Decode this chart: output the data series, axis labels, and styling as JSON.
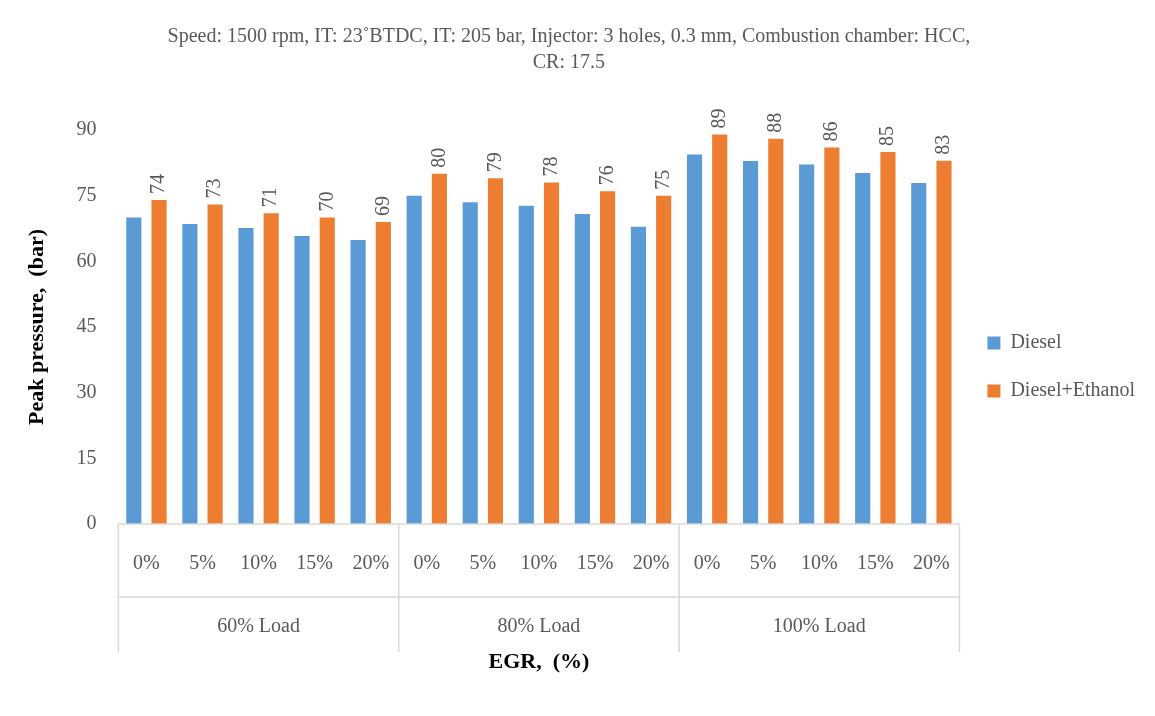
{
  "chart_data": {
    "type": "bar",
    "title": "Speed: 1500 rpm, IT: 23˚BTDC, IT: 205 bar, Injector: 3 holes, 0.3 mm, Combustion chamber: HCC, CR: 17.5",
    "xlabel": "EGR,  (%)",
    "ylabel": "Peak pressure,  (bar)",
    "categories": [
      "0%",
      "5%",
      "10%",
      "15%",
      "20%",
      "0%",
      "5%",
      "10%",
      "15%",
      "20%",
      "0%",
      "5%",
      "10%",
      "15%",
      "20%"
    ],
    "annotations": [
      "60% Load",
      "80% Load",
      "100% Load"
    ],
    "series": [
      {
        "name": "Diesel",
        "color": "#5b9bd5",
        "values": [
          70,
          68.5,
          67.6,
          65.8,
          64.9,
          75,
          73.5,
          72.7,
          70.8,
          67.9,
          84.4,
          82.9,
          82.1,
          80.2,
          77.9
        ]
      },
      {
        "name": "Diesel+Ethanol",
        "color": "#ed7d31",
        "values": [
          74,
          73,
          71,
          70,
          69,
          80,
          79,
          78,
          76,
          75,
          89,
          88,
          86,
          85,
          83
        ],
        "value_labels": [
          "74",
          "73",
          "71",
          "70",
          "69",
          "80",
          "79",
          "78",
          "76",
          "75",
          "89",
          "88",
          "86",
          "85",
          "83"
        ]
      }
    ],
    "ylim": [
      0,
      90
    ],
    "yticks": [
      0,
      15,
      30,
      45,
      60,
      75,
      90
    ],
    "grid": false,
    "legend": "right"
  }
}
